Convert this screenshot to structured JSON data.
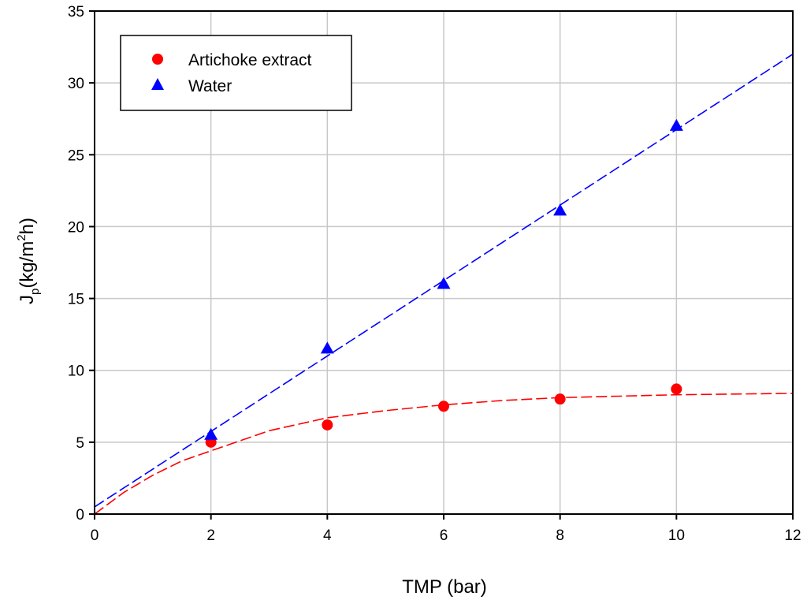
{
  "chart_data": {
    "type": "scatter",
    "xlabel": "TMP (bar)",
    "ylabel_main": "J",
    "ylabel_sub": "p",
    "ylabel_unit": "(kg/m",
    "ylabel_sup": "2",
    "ylabel_end": "h)",
    "xlim": [
      0,
      12
    ],
    "ylim": [
      0,
      35
    ],
    "xticks": [
      "0",
      "2",
      "4",
      "6",
      "8",
      "10",
      "12"
    ],
    "yticks": [
      "0",
      "5",
      "10",
      "15",
      "20",
      "25",
      "30",
      "35"
    ],
    "grid": true,
    "legend_position": "top-left",
    "series": [
      {
        "name": "Artichoke extract",
        "marker": "circle",
        "color": "#ff0000",
        "x": [
          2,
          4,
          6,
          8,
          10
        ],
        "y": [
          5.0,
          6.2,
          7.5,
          8.0,
          8.7
        ],
        "fit": {
          "style": "dashed",
          "x": [
            0,
            0.5,
            1,
            1.5,
            2,
            3,
            4,
            5,
            6,
            7,
            8,
            9,
            10,
            11,
            12
          ],
          "y": [
            0,
            1.5,
            2.7,
            3.7,
            4.4,
            5.8,
            6.7,
            7.2,
            7.6,
            7.9,
            8.1,
            8.2,
            8.3,
            8.35,
            8.4
          ]
        }
      },
      {
        "name": "Water",
        "marker": "triangle",
        "color": "#0000ff",
        "x": [
          2,
          4,
          6,
          8,
          10
        ],
        "y": [
          5.5,
          11.5,
          16.0,
          21.1,
          27.0
        ],
        "fit": {
          "style": "dashed",
          "x": [
            0,
            12
          ],
          "y": [
            0.5,
            32.0
          ]
        }
      }
    ]
  }
}
